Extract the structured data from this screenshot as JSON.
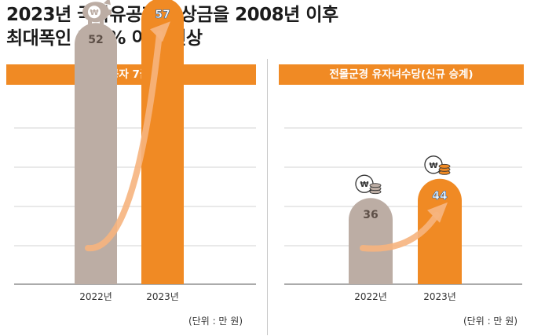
{
  "headline": {
    "line1": "2023년 국가유공자 보상금을 2008년 이후",
    "line2": "최대폭인 5.5% 이상 인상"
  },
  "chart_data": [
    {
      "type": "bar",
      "title": "국가유공자 7급 보상금",
      "categories": [
        "2022년",
        "2023년"
      ],
      "values": [
        52,
        57
      ],
      "value_labels": [
        "52",
        "57"
      ],
      "unit_note": "(단위 : 만 원)",
      "grid": true,
      "bar_colors": [
        "#bcada4",
        "#f08a24"
      ]
    },
    {
      "type": "bar",
      "title": "전몰군경 유자녀수당(신규 승계)",
      "categories": [
        "2022년",
        "2023년"
      ],
      "values": [
        36,
        44
      ],
      "value_labels": [
        "36",
        "44"
      ],
      "unit_note": "(단위 : 만 원)",
      "grid": true,
      "bar_colors": [
        "#bcada4",
        "#f08a24"
      ]
    }
  ],
  "colors": {
    "accent": "#f08a24",
    "prior_bar": "#bcada4",
    "arrow": "#f6b47e"
  },
  "icons": {
    "left": "piggy-bank-won-icon",
    "right": "won-coin-stack-icon"
  }
}
